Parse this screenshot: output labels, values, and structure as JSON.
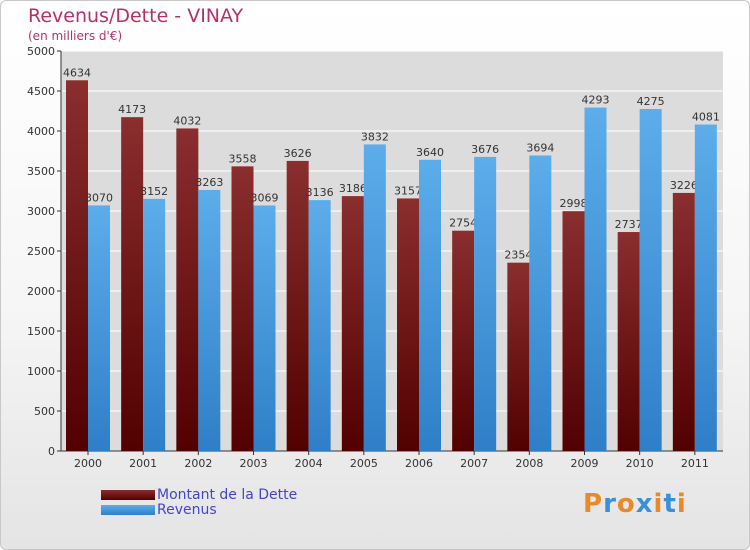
{
  "chart_data": {
    "type": "bar",
    "title": "Revenus/Dette - VINAY",
    "subtitle": "(en milliers d'€)",
    "categories": [
      "2000",
      "2001",
      "2002",
      "2003",
      "2004",
      "2005",
      "2006",
      "2007",
      "2008",
      "2009",
      "2010",
      "2011"
    ],
    "series": [
      {
        "name": "Montant de la Dette",
        "color": "#6b0a0a",
        "values": [
          4634,
          4173,
          4032,
          3558,
          3626,
          3186,
          3157,
          2754,
          2354,
          2998,
          2737,
          3226
        ]
      },
      {
        "name": "Revenus",
        "color": "#3a8fd9",
        "values": [
          3070,
          3152,
          3263,
          3069,
          3136,
          3832,
          3640,
          3676,
          3694,
          4293,
          4275,
          4081
        ]
      }
    ],
    "ylim": [
      0,
      5000
    ],
    "yticks": [
      0,
      500,
      1000,
      1500,
      2000,
      2500,
      3000,
      3500,
      4000,
      4500,
      5000
    ],
    "grid": true,
    "legend_position": "bottom-left"
  },
  "logo": {
    "text": "Proxiti",
    "letter_colors": [
      "#e8892b",
      "#3a8fd9",
      "#e8892b",
      "#3a8fd9",
      "#e8892b",
      "#3a8fd9",
      "#e8892b"
    ]
  }
}
